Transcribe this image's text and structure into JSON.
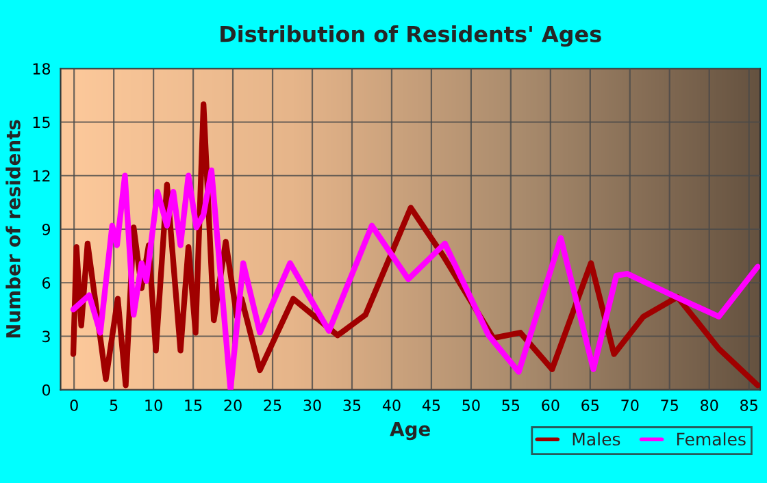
{
  "chart_data": {
    "type": "line",
    "title": "Distribution of Residents' Ages",
    "xlabel": "Age",
    "ylabel": "Number of residents",
    "xlim": [
      -1.7,
      86.4
    ],
    "ylim": [
      0,
      18
    ],
    "xticks": [
      0,
      5,
      10,
      15,
      20,
      25,
      30,
      35,
      40,
      45,
      50,
      55,
      60,
      65,
      70,
      75,
      80,
      85
    ],
    "yticks": [
      0,
      3,
      6,
      9,
      12,
      15,
      18
    ],
    "grid": true,
    "legend": "bottom right",
    "marker": "none",
    "line_style": "solid",
    "series": [
      {
        "name": "Males",
        "color": "#a00000",
        "x": [
          -0.1,
          0.3,
          0.9,
          1.7,
          4.0,
          5.5,
          6.5,
          7.5,
          8.5,
          9.4,
          10.3,
          11.7,
          13.4,
          14.4,
          15.3,
          16.3,
          17.6,
          19.1,
          20.5,
          21.1,
          23.4,
          27.6,
          33.2,
          36.7,
          42.4,
          46.5,
          52.8,
          56.2,
          60.2,
          65.1,
          68.0,
          71.7,
          76.0,
          81.2,
          86.1
        ],
        "values": [
          2.0,
          8.0,
          3.6,
          8.2,
          0.6,
          5.1,
          0.25,
          9.1,
          5.7,
          8.1,
          2.2,
          11.5,
          2.2,
          8.0,
          3.2,
          16.0,
          3.9,
          8.3,
          4.1,
          5.1,
          1.1,
          5.1,
          3.05,
          4.2,
          10.2,
          7.5,
          2.9,
          3.2,
          1.15,
          7.1,
          2.0,
          4.1,
          5.2,
          2.3,
          0.25
        ]
      },
      {
        "name": "Females",
        "color": "#ff00ff",
        "x": [
          -0.1,
          1.9,
          3.3,
          4.8,
          5.4,
          6.4,
          7.5,
          8.5,
          9.1,
          10.5,
          11.7,
          12.5,
          13.4,
          14.4,
          15.4,
          16.3,
          17.3,
          19.7,
          21.3,
          23.4,
          27.2,
          32.1,
          37.5,
          42.1,
          46.7,
          52.2,
          56.0,
          61.3,
          65.4,
          68.3,
          69.7,
          75.8,
          81.2,
          86.1
        ],
        "values": [
          4.5,
          5.3,
          3.2,
          9.2,
          8.1,
          12.0,
          4.2,
          7.1,
          6.1,
          11.1,
          9.2,
          11.1,
          8.1,
          12.0,
          9.1,
          9.8,
          12.3,
          0,
          7.1,
          3.2,
          7.1,
          3.3,
          9.2,
          6.2,
          8.2,
          3.05,
          1.0,
          8.5,
          1.15,
          6.4,
          6.5,
          5.2,
          4.1,
          6.9
        ]
      }
    ]
  }
}
